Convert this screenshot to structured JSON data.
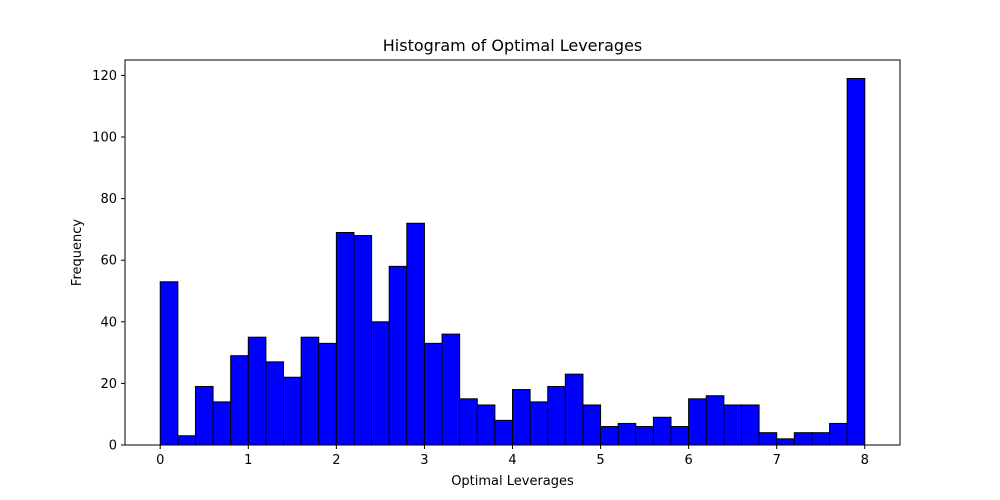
{
  "chart_data": {
    "type": "bar",
    "title": "Histogram of Optimal Leverages",
    "xlabel": "Optimal Leverages",
    "ylabel": "Frequency",
    "xlim": [
      -0.4,
      8.4
    ],
    "ylim": [
      0,
      125
    ],
    "bin_start": 0,
    "bin_width": 0.2,
    "bar_color": "#0000ff",
    "edge_color": "#000000",
    "xticks": [
      0,
      1,
      2,
      3,
      4,
      5,
      6,
      7,
      8
    ],
    "yticks": [
      0,
      20,
      40,
      60,
      80,
      100,
      120
    ],
    "grid": false,
    "values": [
      53,
      3,
      19,
      14,
      29,
      35,
      27,
      22,
      35,
      33,
      69,
      68,
      40,
      58,
      72,
      33,
      36,
      15,
      13,
      8,
      18,
      14,
      19,
      23,
      13,
      6,
      7,
      6,
      9,
      6,
      15,
      16,
      13,
      13,
      4,
      2,
      4,
      4,
      7,
      119
    ]
  }
}
